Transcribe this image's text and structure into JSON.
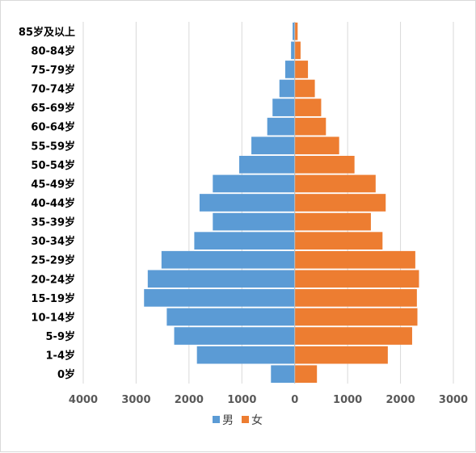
{
  "chart_data": {
    "type": "bar",
    "orientation": "horizontal",
    "categories": [
      "0岁",
      "1-4岁",
      "5-9岁",
      "10-14岁",
      "15-19岁",
      "20-24岁",
      "25-29岁",
      "30-34岁",
      "35-39岁",
      "40-44岁",
      "45-49岁",
      "50-54岁",
      "55-59岁",
      "60-64岁",
      "65-69岁",
      "70-74岁",
      "75-79岁",
      "80-84岁",
      "85岁及以上"
    ],
    "series": [
      {
        "name": "男",
        "color": "#5b9bd5",
        "values": [
          450,
          1850,
          2280,
          2420,
          2850,
          2780,
          2520,
          1900,
          1550,
          1800,
          1550,
          1050,
          820,
          520,
          420,
          290,
          180,
          70,
          40
        ]
      },
      {
        "name": "女",
        "color": "#ed7d31",
        "values": [
          420,
          1760,
          2220,
          2320,
          2310,
          2350,
          2280,
          1660,
          1440,
          1720,
          1530,
          1130,
          840,
          590,
          500,
          380,
          250,
          110,
          55
        ]
      }
    ],
    "xlim": [
      -4000,
      3000
    ],
    "xticks": [
      -4000,
      -3000,
      -2000,
      -1000,
      0,
      1000,
      2000,
      3000
    ],
    "xtick_labels": [
      "4000",
      "3000",
      "2000",
      "1000",
      "0",
      "1000",
      "2000",
      "3000"
    ],
    "grid": true,
    "legend_position": "bottom"
  }
}
